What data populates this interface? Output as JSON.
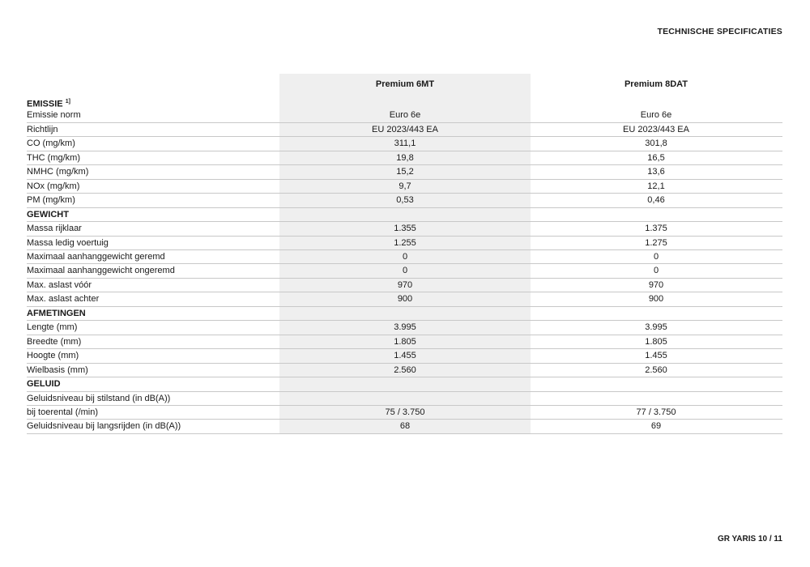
{
  "page_title": "TECHNISCHE SPECIFICATIES",
  "footer": "GR YARIS  10 / 11",
  "columns": [
    "Premium 6MT",
    "Premium 8DAT"
  ],
  "rows": [
    {
      "label": "EMISSIE",
      "note": "1]",
      "section": true,
      "v1": "",
      "v2": ""
    },
    {
      "label": "Emissie norm",
      "v1": "Euro 6e",
      "v2": "Euro 6e"
    },
    {
      "label": "Richtlijn",
      "v1": "EU 2023/443 EA",
      "v2": "EU 2023/443 EA"
    },
    {
      "label": "CO (mg/km)",
      "v1": "311,1",
      "v2": "301,8"
    },
    {
      "label": "THC (mg/km)",
      "v1": "19,8",
      "v2": "16,5"
    },
    {
      "label": "NMHC (mg/km)",
      "v1": "15,2",
      "v2": "13,6"
    },
    {
      "label": "NOx (mg/km)",
      "v1": "9,7",
      "v2": "12,1"
    },
    {
      "label": "PM (mg/km)",
      "v1": "0,53",
      "v2": "0,46"
    },
    {
      "label": "GEWICHT",
      "section": true,
      "v1": "",
      "v2": ""
    },
    {
      "label": "Massa rijklaar",
      "v1": "1.355",
      "v2": "1.375"
    },
    {
      "label": "Massa ledig voertuig",
      "v1": "1.255",
      "v2": "1.275"
    },
    {
      "label": "Maximaal aanhanggewicht geremd",
      "v1": "0",
      "v2": "0"
    },
    {
      "label": "Maximaal aanhanggewicht ongeremd",
      "v1": "0",
      "v2": "0"
    },
    {
      "label": "Max. aslast vóór",
      "v1": "970",
      "v2": "970"
    },
    {
      "label": "Max. aslast achter",
      "v1": "900",
      "v2": "900"
    },
    {
      "label": "AFMETINGEN",
      "section": true,
      "v1": "",
      "v2": ""
    },
    {
      "label": "Lengte (mm)",
      "v1": "3.995",
      "v2": "3.995"
    },
    {
      "label": "Breedte (mm)",
      "v1": "1.805",
      "v2": "1.805"
    },
    {
      "label": "Hoogte (mm)",
      "v1": "1.455",
      "v2": "1.455"
    },
    {
      "label": "Wielbasis (mm)",
      "v1": "2.560",
      "v2": "2.560"
    },
    {
      "label": "GELUID",
      "section": true,
      "v1": "",
      "v2": ""
    },
    {
      "label": "Geluidsniveau bij stilstand (in dB(A))",
      "v1": "",
      "v2": ""
    },
    {
      "label": "bij toerental (/min)",
      "v1": "75 / 3.750",
      "v2": "77 / 3.750"
    },
    {
      "label": "Geluidsniveau bij langsrijden (in dB(A))",
      "v1": "68",
      "v2": "69"
    }
  ]
}
